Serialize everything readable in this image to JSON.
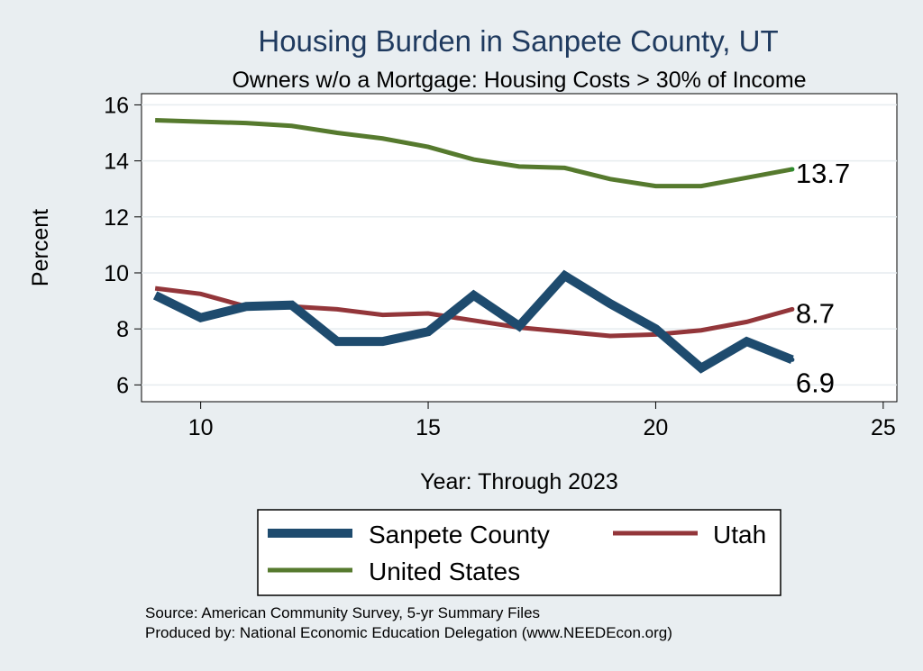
{
  "chart_data": {
    "type": "line",
    "title": "Housing Burden in Sanpete County, UT",
    "subtitle": "Owners w/o a Mortgage: Housing Costs > 30% of Income",
    "xlabel": "Year: Through 2023",
    "ylabel": "Percent",
    "xlim": [
      8.7,
      25.3
    ],
    "ylim": [
      5.4,
      16.4
    ],
    "xticks": [
      10,
      15,
      20,
      25
    ],
    "yticks": [
      6,
      8,
      10,
      12,
      14,
      16
    ],
    "grid": true,
    "legend_position": "bottom",
    "x": [
      9,
      10,
      11,
      12,
      13,
      14,
      15,
      16,
      17,
      18,
      19,
      20,
      21,
      22,
      23
    ],
    "series": [
      {
        "name": "Sanpete County",
        "color": "#1e4b6e",
        "values": [
          9.2,
          8.4,
          8.8,
          8.85,
          7.55,
          7.55,
          7.9,
          9.2,
          8.1,
          9.9,
          8.9,
          8.0,
          6.6,
          7.55,
          6.9
        ],
        "end_label": "6.9"
      },
      {
        "name": "Utah",
        "color": "#93363a",
        "values": [
          9.45,
          9.25,
          8.8,
          8.8,
          8.7,
          8.5,
          8.55,
          8.3,
          8.05,
          7.9,
          7.75,
          7.8,
          7.95,
          8.25,
          8.7
        ],
        "end_label": "8.7"
      },
      {
        "name": "United States",
        "color": "#567a2e",
        "values": [
          15.45,
          15.4,
          15.35,
          15.25,
          15.0,
          14.8,
          14.5,
          14.05,
          13.8,
          13.75,
          13.35,
          13.1,
          13.1,
          13.4,
          13.7
        ],
        "end_label": "13.7"
      }
    ]
  },
  "source_line": "Source: American Community Survey, 5-yr Summary Files",
  "produced_by_line": "Produced by: National Economic Education Delegation (www.NEEDEcon.org)"
}
